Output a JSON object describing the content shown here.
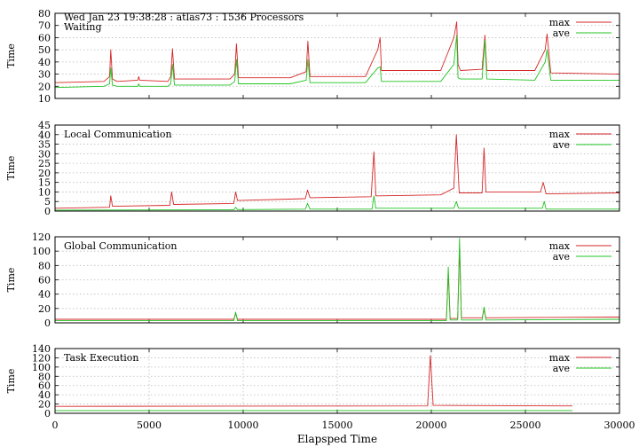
{
  "figure": {
    "header_line": "Wed Jan 23 19:38:28 : atlas73 : 1536 Processors",
    "xlabel": "Elapsped Time",
    "x_ticks": [
      "0",
      "5000",
      "10000",
      "15000",
      "20000",
      "25000",
      "30000"
    ],
    "colors": {
      "max": "#d62728",
      "ave": "#22c422",
      "axis": "#000000",
      "grid": "#bbbbbb"
    }
  },
  "chart_data": [
    {
      "type": "line",
      "title": "Waiting",
      "ylabel": "Time",
      "xlim": [
        0,
        30000
      ],
      "ylim": [
        10,
        80
      ],
      "y_ticks": [
        "10",
        "20",
        "30",
        "40",
        "50",
        "60",
        "70",
        "80"
      ],
      "legend": "top-right",
      "grid": "horizontal dotted",
      "series": [
        {
          "name": "max",
          "x": [
            0,
            2600,
            2900,
            2960,
            3050,
            3300,
            4400,
            4450,
            4500,
            6000,
            6150,
            6240,
            6350,
            9300,
            9550,
            9640,
            9750,
            12500,
            13350,
            13440,
            13550,
            16500,
            17150,
            17280,
            17350,
            20500,
            21200,
            21350,
            21420,
            21550,
            22700,
            22850,
            22950,
            25500,
            26050,
            26150,
            26350,
            30000
          ],
          "y": [
            23,
            24,
            28,
            50,
            26,
            24,
            25,
            28,
            25,
            24,
            28,
            51,
            26,
            26,
            30,
            55,
            27,
            27,
            32,
            57,
            28,
            28,
            50,
            60,
            33,
            33,
            60,
            73,
            38,
            33,
            34,
            62,
            33,
            33,
            50,
            63,
            31,
            30
          ]
        },
        {
          "name": "ave",
          "x": [
            0,
            2600,
            2900,
            2960,
            3050,
            3300,
            4400,
            4450,
            4500,
            6000,
            6150,
            6240,
            6350,
            9300,
            9550,
            9640,
            9750,
            12500,
            13350,
            13440,
            13550,
            16500,
            17150,
            17280,
            17350,
            20500,
            21200,
            21350,
            21420,
            21550,
            22700,
            22850,
            22950,
            25500,
            26050,
            26150,
            26350,
            30000
          ],
          "y": [
            19,
            20,
            22,
            35,
            21,
            20,
            20,
            22,
            20,
            20,
            22,
            38,
            21,
            21,
            24,
            42,
            22,
            22,
            25,
            42,
            23,
            23,
            35,
            36,
            24,
            24,
            38,
            62,
            27,
            26,
            26,
            58,
            26,
            25,
            40,
            50,
            25,
            25
          ]
        }
      ]
    },
    {
      "type": "line",
      "title": "Local Communication",
      "ylabel": "Time",
      "xlim": [
        0,
        30000
      ],
      "ylim": [
        0,
        45
      ],
      "y_ticks": [
        "0",
        "5",
        "10",
        "15",
        "20",
        "25",
        "30",
        "35",
        "40",
        "45"
      ],
      "legend": "top-right",
      "grid": "horizontal dotted",
      "series": [
        {
          "name": "max",
          "x": [
            0,
            2900,
            2960,
            3050,
            6100,
            6200,
            6300,
            9500,
            9600,
            9700,
            13300,
            13420,
            13550,
            16800,
            16950,
            17050,
            17250,
            20500,
            21200,
            21330,
            21480,
            22700,
            22800,
            22900,
            25800,
            25950,
            26100,
            30000
          ],
          "y": [
            1.5,
            2,
            8,
            2.5,
            3,
            10,
            3.5,
            4,
            10,
            5.5,
            6.5,
            11,
            7,
            7.5,
            31,
            8,
            8,
            8.5,
            12,
            40,
            9.5,
            9.5,
            33,
            10,
            10,
            15,
            9,
            9.5
          ]
        },
        {
          "name": "ave",
          "x": [
            0,
            9500,
            9600,
            9700,
            13300,
            13420,
            13550,
            16850,
            16950,
            17050,
            17200,
            17300,
            21200,
            21330,
            21450,
            25900,
            26000,
            26100,
            30000
          ],
          "y": [
            0.5,
            0.7,
            2,
            0.8,
            1,
            4,
            1,
            1,
            8,
            1.5,
            1.5,
            1.5,
            1.5,
            5,
            1.5,
            1.5,
            5,
            1,
            1
          ]
        }
      ]
    },
    {
      "type": "line",
      "title": "Global Communication",
      "ylabel": "Time",
      "xlim": [
        0,
        30000
      ],
      "ylim": [
        0,
        120
      ],
      "y_ticks": [
        "0",
        "20",
        "40",
        "60",
        "80",
        "100",
        "120"
      ],
      "legend": "top-right",
      "grid": "horizontal dotted",
      "series": [
        {
          "name": "max",
          "x": [
            0,
            9500,
            9600,
            9700,
            20800,
            20900,
            21000,
            21400,
            21500,
            21600,
            22700,
            22800,
            22900,
            30000
          ],
          "y": [
            5,
            5,
            13,
            5,
            5,
            70,
            6,
            6,
            105,
            7,
            7,
            18,
            7,
            8
          ]
        },
        {
          "name": "ave",
          "x": [
            0,
            9500,
            9600,
            9700,
            20800,
            20900,
            21000,
            21400,
            21500,
            21600,
            22700,
            22800,
            22900,
            30000
          ],
          "y": [
            3,
            3,
            15,
            3,
            3,
            78,
            4,
            4,
            118,
            4,
            4,
            22,
            4,
            5
          ]
        }
      ]
    },
    {
      "type": "line",
      "title": "Task Execution",
      "ylabel": "Time",
      "xlim": [
        0,
        30000
      ],
      "ylim": [
        0,
        140
      ],
      "y_ticks": [
        "0",
        "20",
        "40",
        "60",
        "80",
        "100",
        "120",
        "140"
      ],
      "legend": "top-right",
      "grid": "both dotted",
      "series": [
        {
          "name": "max",
          "x": [
            0,
            19800,
            19950,
            20100,
            27500
          ],
          "y": [
            15,
            16,
            125,
            17,
            16
          ]
        },
        {
          "name": "ave",
          "x": [
            0,
            27500
          ],
          "y": [
            6,
            6
          ]
        }
      ]
    }
  ]
}
